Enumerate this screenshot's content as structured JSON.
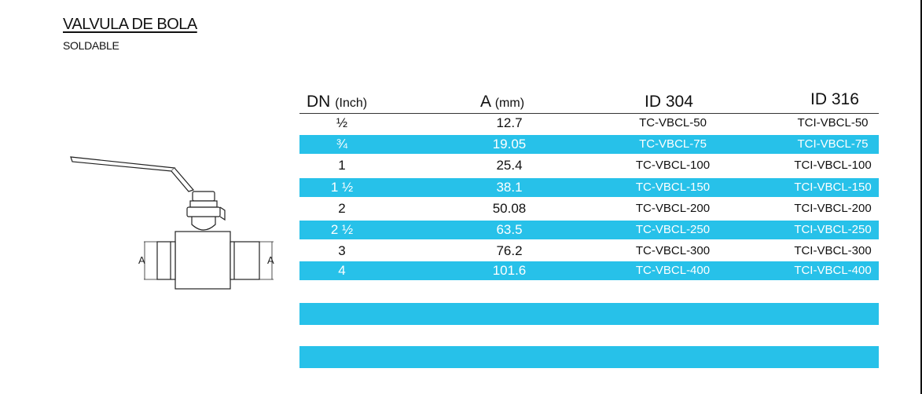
{
  "header": {
    "title": "VALVULA DE BOLA",
    "subtitle": "SOLDABLE"
  },
  "table": {
    "columns": [
      {
        "main": "DN",
        "unit": "(Inch)"
      },
      {
        "main": "A",
        "unit": "(mm)"
      },
      {
        "main": "ID 304",
        "unit": ""
      },
      {
        "main": "ID 316",
        "unit": ""
      }
    ],
    "rows": [
      {
        "dn": "½",
        "a": "12.7",
        "id304": "TC-VBCL-50",
        "id316": "TCI-VBCL-50"
      },
      {
        "dn": "¾",
        "a": "19.05",
        "id304": "TC-VBCL-75",
        "id316": "TCI-VBCL-75"
      },
      {
        "dn": "1",
        "a": "25.4",
        "id304": "TC-VBCL-100",
        "id316": "TCI-VBCL-100"
      },
      {
        "dn": "1 ½",
        "a": "38.1",
        "id304": "TC-VBCL-150",
        "id316": "TCI-VBCL-150"
      },
      {
        "dn": "2",
        "a": "50.08",
        "id304": "TC-VBCL-200",
        "id316": "TCI-VBCL-200"
      },
      {
        "dn": "2 ½",
        "a": "63.5",
        "id304": "TC-VBCL-250",
        "id316": "TCI-VBCL-250"
      },
      {
        "dn": "3",
        "a": "76.2",
        "id304": "TC-VBCL-300",
        "id316": "TCI-VBCL-300"
      },
      {
        "dn": "4",
        "a": "101.6",
        "id304": "TC-VBCL-400",
        "id316": "TCI-VBCL-400"
      }
    ]
  },
  "diagram": {
    "dimension_label_left": "A",
    "dimension_label_right": "A"
  },
  "colors": {
    "band": "#27c1e9",
    "text": "#111111",
    "band_text": "#ffffff"
  }
}
